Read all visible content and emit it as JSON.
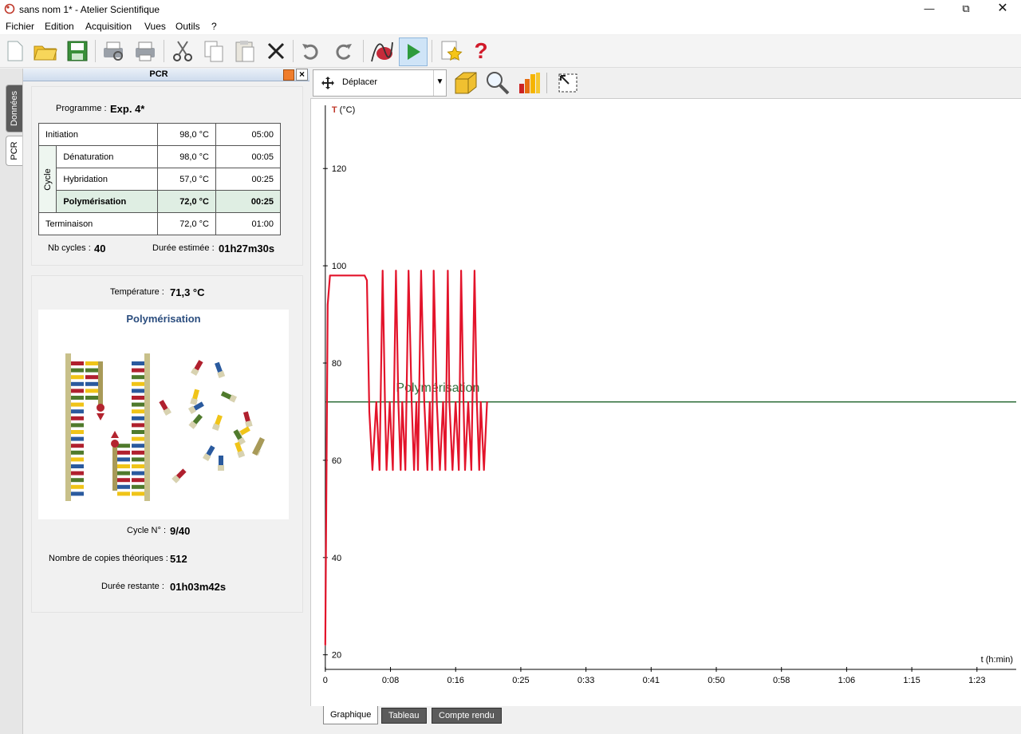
{
  "window": {
    "title": "sans nom 1* - Atelier Scientifique"
  },
  "menu": [
    "Fichier",
    "Edition",
    "Acquisition",
    "Vues",
    "Outils",
    "?"
  ],
  "side_tabs": [
    "Données",
    "PCR"
  ],
  "pcr_panel": {
    "title": "PCR",
    "programme_label": "Programme :",
    "programme_value": "Exp. 4*",
    "cycle_label": "Cycle",
    "steps": [
      {
        "name": "Initiation",
        "temp": "98,0 °C",
        "time": "05:00"
      },
      {
        "name": "Dénaturation",
        "temp": "98,0 °C",
        "time": "00:05"
      },
      {
        "name": "Hybridation",
        "temp": "57,0 °C",
        "time": "00:25"
      },
      {
        "name": "Polymérisation",
        "temp": "72,0 °C",
        "time": "00:25"
      },
      {
        "name": "Terminaison",
        "temp": "72,0 °C",
        "time": "01:00"
      }
    ],
    "nb_cycles_label": "Nb cycles :",
    "nb_cycles_value": "40",
    "duree_estimee_label": "Durée estimée :",
    "duree_estimee_value": "01h27m30s",
    "temperature_label": "Température :",
    "temperature_value": "71,3 °C",
    "phase_title": "Polymérisation",
    "cycle_no_label": "Cycle N° :",
    "cycle_no_value": "9/40",
    "copies_label": "Nombre de copies théoriques :",
    "copies_value": "512",
    "duree_restante_label": "Durée restante :",
    "duree_restante_value": "01h03m42s"
  },
  "graph_toolbar": {
    "mode_select": "Déplacer"
  },
  "bottom_tabs": [
    "Graphique",
    "Tableau",
    "Compte rendu"
  ],
  "colors": {
    "curve": "#e3142b",
    "setpoint": "#2e6e3a",
    "active_row": "#dfeee3"
  },
  "chart_data": {
    "type": "line",
    "ylabel": "T (°C)",
    "xlabel": "t (h:min)",
    "y_ticks": [
      20,
      40,
      60,
      80,
      100,
      120
    ],
    "x_ticks": [
      "0",
      "0:08",
      "0:16",
      "0:25",
      "0:33",
      "0:41",
      "0:50",
      "0:58",
      "1:06",
      "1:15",
      "1:23"
    ],
    "ylim": [
      17,
      133
    ],
    "xlim_min": [
      -1,
      88
    ],
    "setpoint": {
      "value": 72,
      "label": "Polymérisation"
    },
    "series": [
      {
        "x": [
          0,
          0.3,
          0.6,
          5,
          5.3,
          5.6,
          6.0,
          6.5,
          6.9,
          7.3,
          7.6,
          7.8,
          8.2,
          8.6,
          9.0,
          9.3,
          9.6,
          9.8,
          10.2,
          10.6,
          11.0,
          11.3,
          11.6,
          11.8,
          12.2,
          12.6,
          13.0,
          13.3,
          13.6,
          13.8,
          14.2,
          14.6,
          15.0,
          15.3,
          15.6,
          15.8,
          16.2,
          16.6,
          17.0,
          17.3,
          17.6,
          17.8,
          18.2,
          18.6,
          19.0,
          19.3,
          19.6,
          19.8,
          20.2,
          20.6
        ],
        "y": [
          22,
          92,
          98,
          98,
          97,
          70,
          58,
          72,
          58,
          99,
          72,
          58,
          72,
          58,
          99,
          72,
          58,
          72,
          58,
          99,
          72,
          58,
          72,
          58,
          99,
          72,
          58,
          72,
          58,
          99,
          72,
          58,
          72,
          58,
          99,
          72,
          58,
          72,
          58,
          99,
          72,
          58,
          72,
          58,
          99,
          72,
          58,
          72,
          58,
          72
        ]
      }
    ]
  }
}
